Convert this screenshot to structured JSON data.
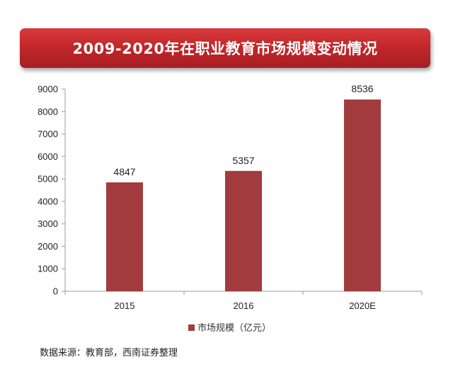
{
  "chart_data": {
    "type": "bar",
    "title": "2009-2020年在职业教育市场规模变动情况",
    "categories": [
      "2015",
      "2016",
      "2020E"
    ],
    "series": [
      {
        "name": "市场规模（亿元）",
        "values": [
          4847,
          5357,
          8536
        ],
        "color": "#a23b3d"
      }
    ],
    "yticks": [
      "0",
      "1000",
      "2000",
      "3000",
      "4000",
      "5000",
      "6000",
      "7000",
      "8000",
      "9000"
    ],
    "ylim": [
      0,
      9000
    ],
    "data_labels": [
      "4847",
      "5357",
      "8536"
    ],
    "grid": false,
    "legend": "bottom"
  },
  "source": "数据来源：教育部，西南证券整理"
}
